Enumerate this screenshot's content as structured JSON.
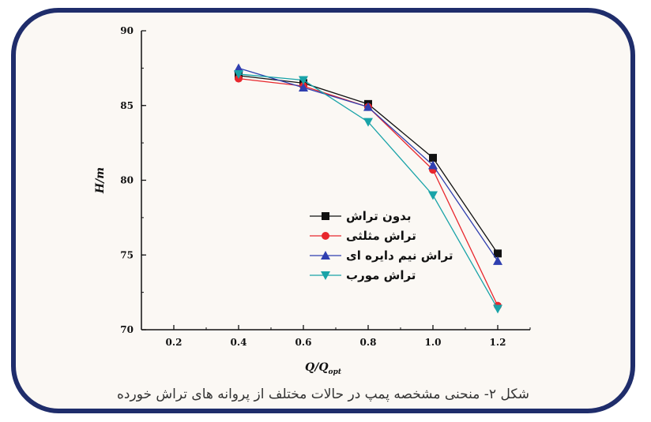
{
  "chart_data": {
    "type": "line",
    "title": "",
    "xlabel": "Q/Q",
    "xlabel_sub": "opt",
    "ylabel": "H/m",
    "xlim": [
      0.1,
      1.3
    ],
    "ylim": [
      70,
      90
    ],
    "x_ticks": [
      0.2,
      0.4,
      0.6,
      0.8,
      1.0,
      1.2
    ],
    "y_ticks": [
      70,
      75,
      80,
      85,
      90
    ],
    "x": [
      0.4,
      0.6,
      0.8,
      1.0,
      1.2
    ],
    "grid": false,
    "legend_position": "center-right",
    "series": [
      {
        "name": "بدون تراش",
        "marker": "square",
        "color": "#111111",
        "values": [
          87.0,
          86.5,
          85.1,
          81.5,
          75.1
        ]
      },
      {
        "name": "تراش مثلثی",
        "marker": "circle",
        "color": "#e8272d",
        "values": [
          86.8,
          86.3,
          84.9,
          80.7,
          71.6
        ]
      },
      {
        "name": "تراش نیم دایره ای",
        "marker": "triangle-up",
        "color": "#2f3fb0",
        "values": [
          87.5,
          86.2,
          84.9,
          81.0,
          74.6
        ]
      },
      {
        "name": "تراش مورب",
        "marker": "triangle-down",
        "color": "#19a3a8",
        "values": [
          87.1,
          86.7,
          83.9,
          79.0,
          71.4
        ]
      }
    ]
  },
  "caption": "شکل ۲- منحنی مشخصه پمپ در حالات مختلف از پروانه های تراش خورده"
}
